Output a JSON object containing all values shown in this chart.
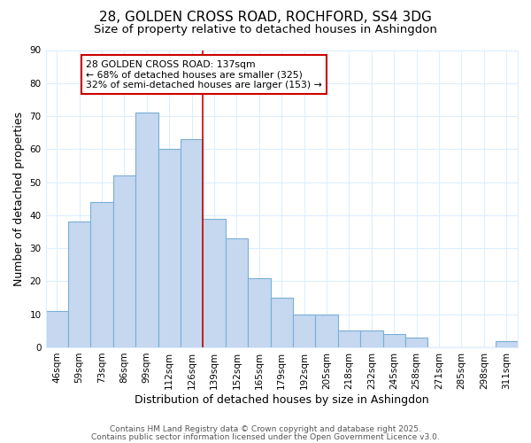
{
  "title1": "28, GOLDEN CROSS ROAD, ROCHFORD, SS4 3DG",
  "title2": "Size of property relative to detached houses in Ashingdon",
  "xlabel": "Distribution of detached houses by size in Ashingdon",
  "ylabel": "Number of detached properties",
  "categories": [
    "46sqm",
    "59sqm",
    "73sqm",
    "86sqm",
    "99sqm",
    "112sqm",
    "126sqm",
    "139sqm",
    "152sqm",
    "165sqm",
    "179sqm",
    "192sqm",
    "205sqm",
    "218sqm",
    "232sqm",
    "245sqm",
    "258sqm",
    "271sqm",
    "285sqm",
    "298sqm",
    "311sqm"
  ],
  "values": [
    11,
    38,
    44,
    52,
    71,
    60,
    63,
    39,
    33,
    21,
    15,
    10,
    10,
    5,
    5,
    4,
    3,
    0,
    0,
    0,
    2
  ],
  "bar_color": "#C5D8F0",
  "bar_edgecolor": "#7BAFD4",
  "bar_linewidth": 0.8,
  "reference_line_index": 7,
  "reference_label": "28 GOLDEN CROSS ROAD: 137sqm",
  "annotation_line1": "← 68% of detached houses are smaller (325)",
  "annotation_line2": "32% of semi-detached houses are larger (153) →",
  "annotation_box_facecolor": "#FFFFFF",
  "annotation_box_edgecolor": "#CC0000",
  "vline_color": "#CC0000",
  "vline_linewidth": 1.2,
  "ylim": [
    0,
    90
  ],
  "background_color": "#FFFFFF",
  "plot_bg_color": "#FFFFFF",
  "grid_color": "#DDEEFF",
  "footer1": "Contains HM Land Registry data © Crown copyright and database right 2025.",
  "footer2": "Contains public sector information licensed under the Open Government Licence v3.0.",
  "title_fontsize": 11,
  "subtitle_fontsize": 9.5,
  "tick_fontsize": 7.5,
  "label_fontsize": 9,
  "footer_fontsize": 6.5
}
